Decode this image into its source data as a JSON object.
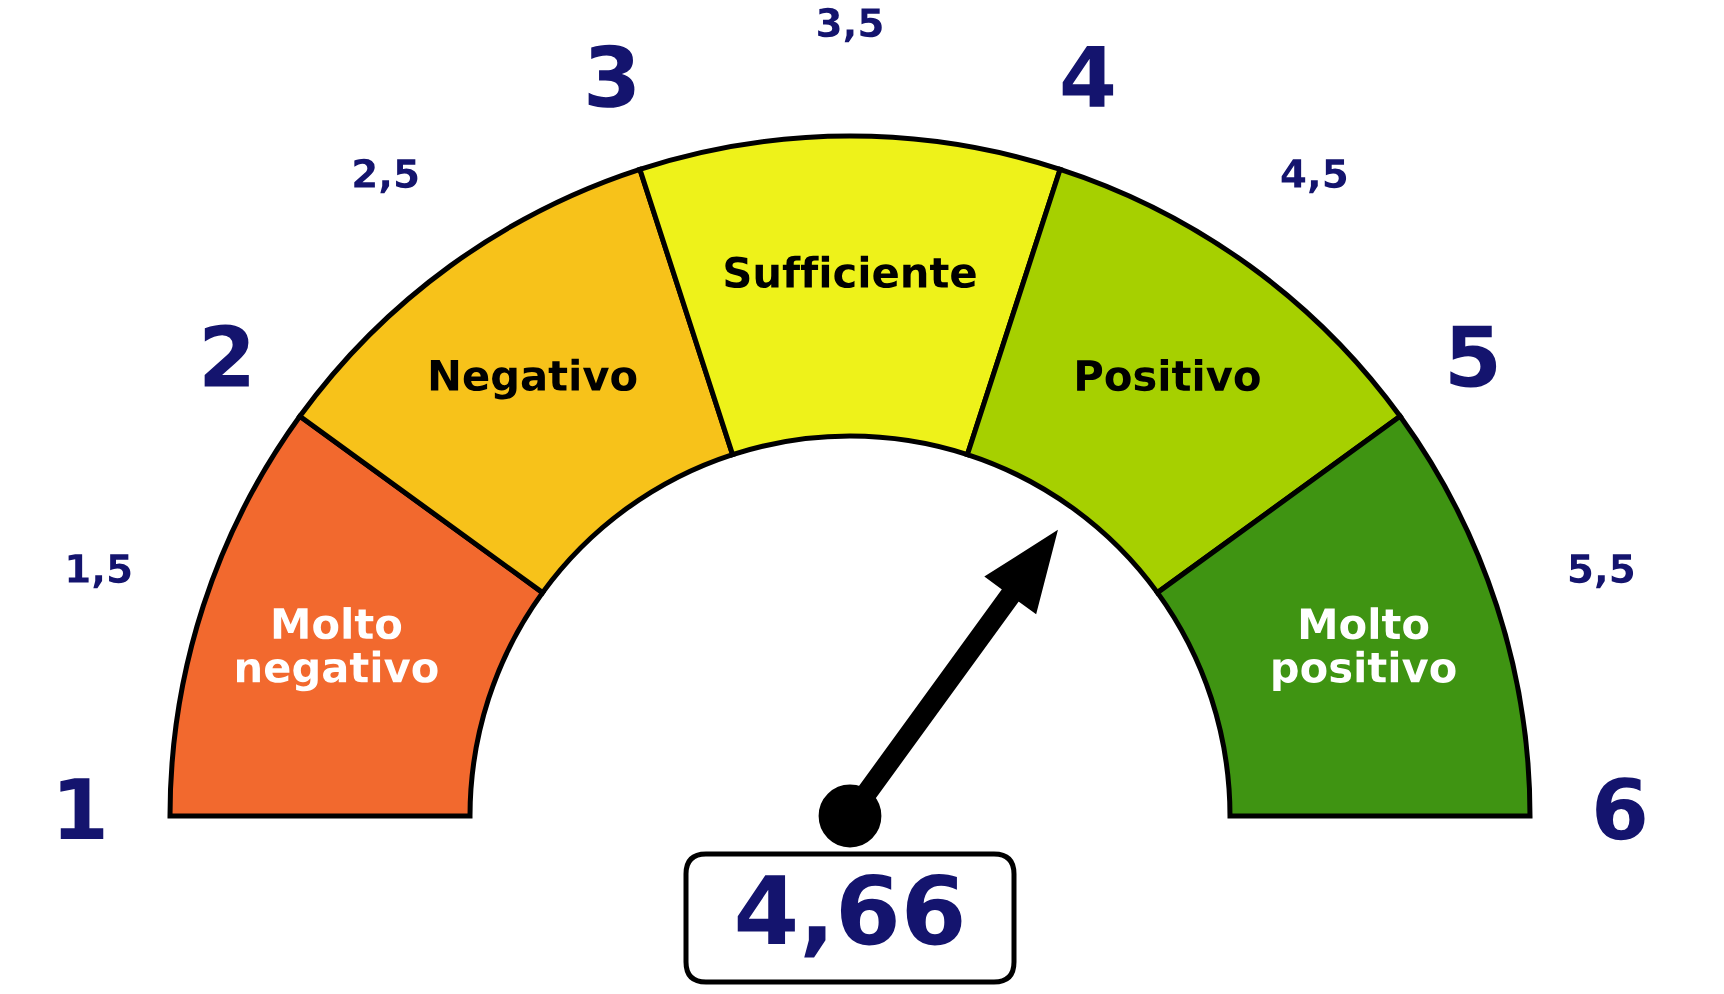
{
  "chart_data": {
    "type": "donut",
    "categories": [
      "Molto negativo",
      "Negativo",
      "Sufficiente",
      "Positivo",
      "Molto positivo"
    ],
    "values": [
      20,
      20,
      20,
      20,
      20
    ],
    "colors": [
      "#f2692e",
      "#f7c21a",
      "#eef21a",
      "#a6d000",
      "#3f9412"
    ],
    "needle": "Positivo",
    "annotations": [
      "1",
      "1,5",
      "2",
      "2,5",
      "3",
      "3,5",
      "4",
      "4,5",
      "5",
      "5,5",
      "6",
      "4,66"
    ]
  }
}
